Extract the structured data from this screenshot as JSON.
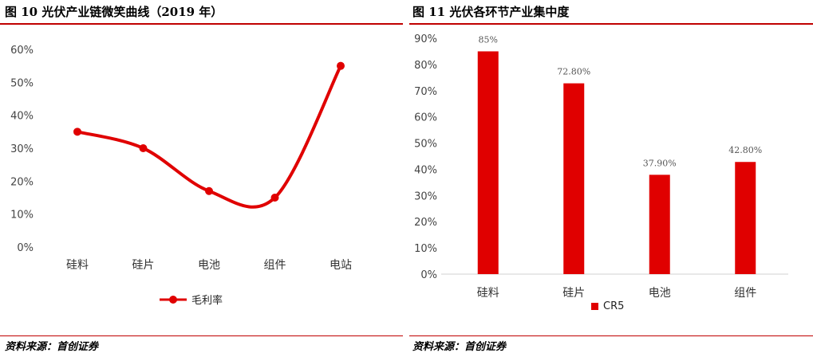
{
  "left": {
    "title": "图 10 光伏产业链微笑曲线（2019 年）",
    "source": "资料来源：首创证券",
    "chart_data": {
      "type": "line",
      "categories": [
        "硅料",
        "硅片",
        "电池",
        "组件",
        "电站"
      ],
      "series": [
        {
          "name": "毛利率",
          "values": [
            35,
            30,
            17,
            15,
            55
          ]
        }
      ],
      "ylim": [
        0,
        60
      ],
      "y_ticks": [
        "0%",
        "10%",
        "20%",
        "30%",
        "40%",
        "50%",
        "60%"
      ],
      "grid": false,
      "smooth": true,
      "legend_position": "bottom",
      "color": "#e00000"
    }
  },
  "right": {
    "title": "图 11 光伏各环节产业集中度",
    "source": "资料来源：首创证券",
    "chart_data": {
      "type": "bar",
      "categories": [
        "硅料",
        "硅片",
        "电池",
        "组件"
      ],
      "series": [
        {
          "name": "CR5",
          "values": [
            85,
            72.8,
            37.9,
            42.8
          ]
        }
      ],
      "data_labels": [
        "85%",
        "72.80%",
        "37.90%",
        "42.80%"
      ],
      "ylim": [
        0,
        90
      ],
      "y_ticks": [
        "0%",
        "10%",
        "20%",
        "30%",
        "40%",
        "50%",
        "60%",
        "70%",
        "80%",
        "90%"
      ],
      "grid": false,
      "legend_position": "bottom",
      "color": "#e00000"
    }
  }
}
